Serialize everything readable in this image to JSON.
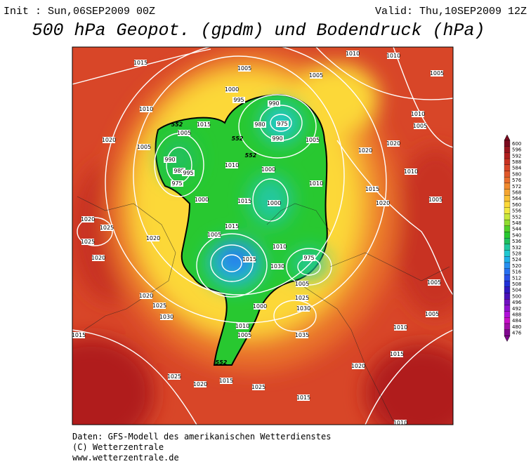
{
  "header": {
    "init": "Init : Sun,06SEP2009 00Z",
    "valid": "Valid: Thu,10SEP2009 12Z",
    "title": "500 hPa Geopot. (gpdm) und Bodendruck (hPa)"
  },
  "colorbar": {
    "levels": [
      {
        "value": 600,
        "color": "#7a0a1e"
      },
      {
        "value": 596,
        "color": "#96141e"
      },
      {
        "value": 592,
        "color": "#b01e1e"
      },
      {
        "value": 588,
        "color": "#c83222"
      },
      {
        "value": 584,
        "color": "#d84628"
      },
      {
        "value": 580,
        "color": "#e0582a"
      },
      {
        "value": 576,
        "color": "#e86e2c"
      },
      {
        "value": 572,
        "color": "#f08a2e"
      },
      {
        "value": 568,
        "color": "#f5a531"
      },
      {
        "value": 564,
        "color": "#fac033"
      },
      {
        "value": 560,
        "color": "#fcd838"
      },
      {
        "value": 556,
        "color": "#f0e840"
      },
      {
        "value": 552,
        "color": "#c8e83c"
      },
      {
        "value": 548,
        "color": "#90dc30"
      },
      {
        "value": 544,
        "color": "#50d02a"
      },
      {
        "value": 540,
        "color": "#28c830"
      },
      {
        "value": 536,
        "color": "#20c060"
      },
      {
        "value": 532,
        "color": "#20c8a0"
      },
      {
        "value": 528,
        "color": "#20c8d0"
      },
      {
        "value": 524,
        "color": "#20b0e8"
      },
      {
        "value": 520,
        "color": "#2890f0"
      },
      {
        "value": 516,
        "color": "#2870f0"
      },
      {
        "value": 512,
        "color": "#2850e8"
      },
      {
        "value": 508,
        "color": "#2030d8"
      },
      {
        "value": 504,
        "color": "#3018c0"
      },
      {
        "value": 500,
        "color": "#4810b8"
      },
      {
        "value": 496,
        "color": "#7010c0"
      },
      {
        "value": 492,
        "color": "#9010d0"
      },
      {
        "value": 488,
        "color": "#b010d8"
      },
      {
        "value": 484,
        "color": "#c810c8"
      },
      {
        "value": 480,
        "color": "#a010a8"
      },
      {
        "value": 476,
        "color": "#800890"
      }
    ]
  },
  "map": {
    "isobar_labels": [
      "1015",
      "1005",
      "1010",
      "1010",
      "1005",
      "1000",
      "995",
      "990",
      "1010",
      "1015",
      "1005",
      "975",
      "980",
      "990",
      "1005",
      "1020",
      "1005",
      "990",
      "985",
      "975",
      "995",
      "1010",
      "1000",
      "1005",
      "1010",
      "1000",
      "1015",
      "1000",
      "1015",
      "1020",
      "1020",
      "1010",
      "1005",
      "1010",
      "1015",
      "1020",
      "1005",
      "1020",
      "1025",
      "1025",
      "1020",
      "1020",
      "1010",
      "1030",
      "1005",
      "1015",
      "975",
      "1005",
      "1025",
      "1030",
      "1000",
      "1020",
      "1025",
      "1030",
      "1015",
      "1010",
      "1005",
      "1035",
      "1010",
      "1005",
      "1005",
      "1020",
      "1015",
      "1025",
      "1020",
      "1015",
      "1025",
      "1015",
      "1010"
    ],
    "height_labels": [
      "552",
      "552",
      "552",
      "552"
    ]
  },
  "footer": {
    "line1": "Daten: GFS-Modell des amerikanischen Wetterdienstes",
    "line2": "(C) Wetterzentrale",
    "line3": "www.wetterzentrale.de"
  }
}
